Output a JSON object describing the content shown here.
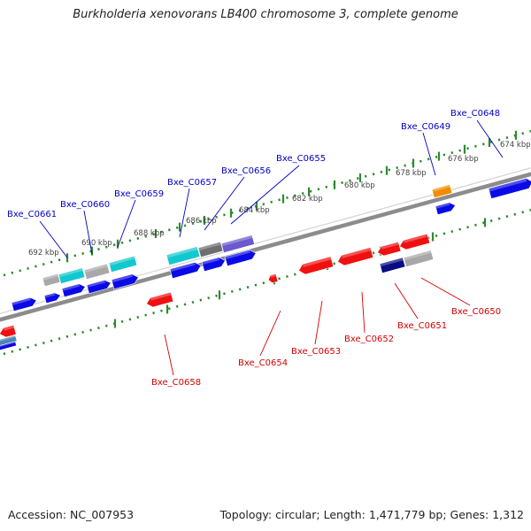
{
  "title": "Burkholderia xenovorans LB400 chromosome 3, complete genome",
  "footer": {
    "accession": "Accession: NC_007953",
    "topology": "Topology: circular; Length: 1,471,779 bp; Genes: 1,312"
  },
  "colors": {
    "backbone": "#8c8c8c",
    "tick": "#2e8b2e",
    "forward_label": "#0000c8",
    "reverse_label": "#d40000",
    "gene_blue": "#0a0ae6",
    "gene_red": "#f01010",
    "gene_cyan": "#12c8cf",
    "gene_gray": "#a8a8a8",
    "gene_darkgray": "#6e6e6e",
    "gene_purple": "#6a5acd",
    "gene_navy": "#0b0b82",
    "gene_orange": "#f08c00",
    "gene_steelblue": "#4f86b0"
  },
  "scale_labels": [
    "692 kbp",
    "690 kbp",
    "688 kbp",
    "686 kbp",
    "684 kbp",
    "682 kbp",
    "680 kbp",
    "678 kbp",
    "676 kbp",
    "674 kbp"
  ],
  "forward_gene_labels": [
    "Bxe_C0661",
    "Bxe_C0660",
    "Bxe_C0659",
    "Bxe_C0657",
    "Bxe_C0656",
    "Bxe_C0655",
    "Bxe_C0649",
    "Bxe_C0648"
  ],
  "reverse_gene_labels": [
    "Bxe_C0658",
    "Bxe_C0654",
    "Bxe_C0653",
    "Bxe_C0652",
    "Bxe_C0651",
    "Bxe_C0650"
  ]
}
